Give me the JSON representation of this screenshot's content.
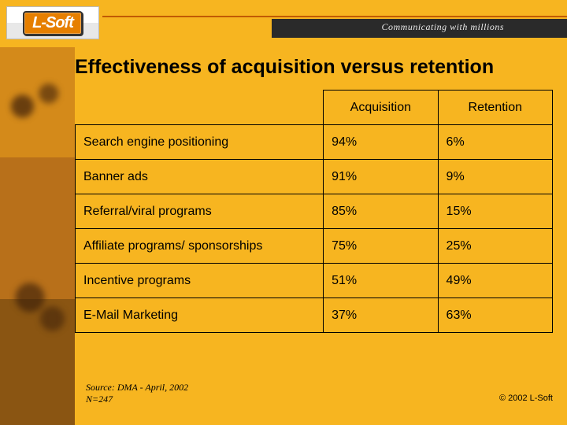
{
  "brand": {
    "logo_text": "L-Soft",
    "tagline": "Communicating with millions"
  },
  "slide": {
    "title": "Effectiveness of acquisition versus retention"
  },
  "table": {
    "type": "table",
    "columns": [
      "",
      "Acquisition",
      "Retention"
    ],
    "col_widths_pct": [
      52,
      24,
      24
    ],
    "border_color": "#000000",
    "background_color": "#f7b520",
    "cell_fontsize": 16,
    "header_fontsize": 16,
    "rows": [
      [
        "Search engine positioning",
        "94%",
        "6%"
      ],
      [
        "Banner ads",
        "91%",
        "9%"
      ],
      [
        "Referral/viral programs",
        "85%",
        "15%"
      ],
      [
        "Affiliate programs/ sponsorships",
        "75%",
        "25%"
      ],
      [
        "Incentive programs",
        "51%",
        "49%"
      ],
      [
        "E-Mail Marketing",
        "37%",
        "63%"
      ]
    ]
  },
  "footer": {
    "source_line1": "Source: DMA - April, 2002",
    "source_line2": "N=247",
    "copyright": "© 2002 L-Soft"
  },
  "colors": {
    "slide_bg": "#f7b520",
    "accent_line": "#c25a00",
    "dark_bar": "#2a2a2a",
    "logo_bg": "#e67f00"
  }
}
